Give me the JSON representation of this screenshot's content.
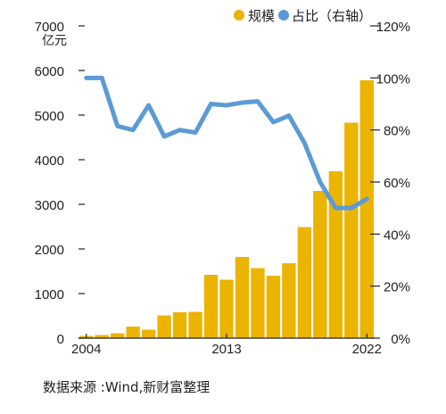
{
  "chart_data": {
    "type": "bar+line",
    "years": [
      2004,
      2005,
      2006,
      2007,
      2008,
      2009,
      2010,
      2011,
      2012,
      2013,
      2014,
      2015,
      2016,
      2017,
      2018,
      2019,
      2020,
      2021,
      2022
    ],
    "x_tick_labels": [
      "2004",
      "2013",
      "2022"
    ],
    "series": [
      {
        "name": "规模",
        "type": "bar",
        "axis": "left",
        "color": "#EBB400",
        "values": [
          50,
          70,
          110,
          260,
          190,
          510,
          580,
          590,
          1420,
          1310,
          1820,
          1570,
          1400,
          1680,
          2490,
          3300,
          3740,
          4830,
          5780
        ]
      },
      {
        "name": "占比（右轴）",
        "type": "line",
        "axis": "right",
        "color": "#5B9BD5",
        "values": [
          100,
          100,
          81.5,
          80,
          89.5,
          77.5,
          80,
          79,
          90,
          89.5,
          90.5,
          91,
          83,
          85.5,
          75,
          60,
          50,
          50,
          53.5
        ]
      }
    ],
    "left_axis": {
      "unit_label": "亿元",
      "ylim": [
        0,
        7000
      ],
      "ticks": [
        "0",
        "1000",
        "2000",
        "3000",
        "4000",
        "5000",
        "6000",
        "7000"
      ]
    },
    "right_axis": {
      "ylim": [
        0,
        120
      ],
      "ticks": [
        "0%",
        "20%",
        "40%",
        "60%",
        "80%",
        "100%",
        "120%"
      ]
    },
    "legend_position": "top-right",
    "grid": false
  },
  "source_note": "数据来源 :Wind,新财富整理"
}
